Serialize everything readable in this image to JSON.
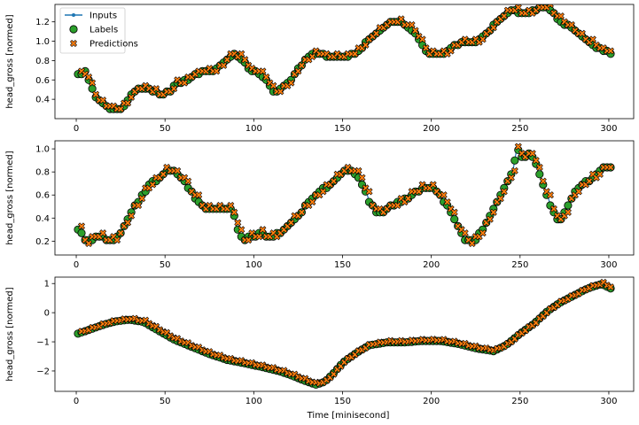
{
  "chart_data": [
    {
      "type": "scatter",
      "xlim": [
        -12,
        314
      ],
      "ylim": [
        0.2,
        1.38
      ],
      "xticks": [
        0,
        50,
        100,
        150,
        200,
        250,
        300
      ],
      "yticks": [
        0.4,
        0.6,
        0.8,
        1.0,
        1.2
      ],
      "ytick_labels": [
        "0.4",
        "0.6",
        "0.8",
        "1.0",
        "1.2"
      ],
      "ylabel": "head_gross [normed]",
      "legend": {
        "position": "upper-left",
        "entries": [
          "Inputs",
          "Labels",
          "Predictions"
        ]
      },
      "curve": [
        [
          2,
          0.65
        ],
        [
          5,
          0.68
        ],
        [
          8,
          0.55
        ],
        [
          10,
          0.45
        ],
        [
          13,
          0.38
        ],
        [
          16,
          0.34
        ],
        [
          20,
          0.3
        ],
        [
          25,
          0.3
        ],
        [
          28,
          0.36
        ],
        [
          32,
          0.46
        ],
        [
          35,
          0.52
        ],
        [
          40,
          0.52
        ],
        [
          43,
          0.48
        ],
        [
          48,
          0.45
        ],
        [
          53,
          0.48
        ],
        [
          56,
          0.58
        ],
        [
          60,
          0.58
        ],
        [
          63,
          0.6
        ],
        [
          66,
          0.65
        ],
        [
          70,
          0.68
        ],
        [
          75,
          0.68
        ],
        [
          80,
          0.72
        ],
        [
          84,
          0.8
        ],
        [
          88,
          0.86
        ],
        [
          92,
          0.84
        ],
        [
          95,
          0.78
        ],
        [
          98,
          0.7
        ],
        [
          102,
          0.68
        ],
        [
          106,
          0.62
        ],
        [
          110,
          0.5
        ],
        [
          113,
          0.48
        ],
        [
          116,
          0.52
        ],
        [
          120,
          0.58
        ],
        [
          124,
          0.7
        ],
        [
          128,
          0.78
        ],
        [
          133,
          0.86
        ],
        [
          138,
          0.86
        ],
        [
          145,
          0.84
        ],
        [
          150,
          0.84
        ],
        [
          155,
          0.86
        ],
        [
          160,
          0.92
        ],
        [
          165,
          1.02
        ],
        [
          170,
          1.1
        ],
        [
          175,
          1.18
        ],
        [
          180,
          1.2
        ],
        [
          185,
          1.18
        ],
        [
          190,
          1.1
        ],
        [
          194,
          1.0
        ],
        [
          198,
          0.88
        ],
        [
          202,
          0.88
        ],
        [
          208,
          0.88
        ],
        [
          212,
          0.94
        ],
        [
          216,
          0.98
        ],
        [
          220,
          0.98
        ],
        [
          225,
          0.98
        ],
        [
          230,
          1.06
        ],
        [
          235,
          1.16
        ],
        [
          240,
          1.26
        ],
        [
          245,
          1.32
        ],
        [
          250,
          1.3
        ],
        [
          255,
          1.28
        ],
        [
          258,
          1.32
        ],
        [
          262,
          1.34
        ],
        [
          266,
          1.34
        ],
        [
          270,
          1.26
        ],
        [
          275,
          1.18
        ],
        [
          280,
          1.12
        ],
        [
          285,
          1.04
        ],
        [
          290,
          0.98
        ],
        [
          295,
          0.92
        ],
        [
          301,
          0.88
        ]
      ],
      "xlabel": "",
      "title": ""
    },
    {
      "type": "scatter",
      "xlim": [
        -12,
        314
      ],
      "ylim": [
        0.08,
        1.07
      ],
      "xticks": [
        0,
        50,
        100,
        150,
        200,
        250,
        300
      ],
      "yticks": [
        0.2,
        0.4,
        0.6,
        0.8,
        1.0
      ],
      "ytick_labels": [
        "0.2",
        "0.4",
        "0.6",
        "0.8",
        "1.0"
      ],
      "ylabel": "head_gross [normed]",
      "curve": [
        [
          2,
          0.3
        ],
        [
          4,
          0.22
        ],
        [
          6,
          0.18
        ],
        [
          10,
          0.24
        ],
        [
          14,
          0.24
        ],
        [
          18,
          0.2
        ],
        [
          22,
          0.22
        ],
        [
          26,
          0.3
        ],
        [
          30,
          0.42
        ],
        [
          34,
          0.52
        ],
        [
          38,
          0.62
        ],
        [
          42,
          0.7
        ],
        [
          46,
          0.74
        ],
        [
          50,
          0.8
        ],
        [
          55,
          0.8
        ],
        [
          60,
          0.74
        ],
        [
          64,
          0.64
        ],
        [
          68,
          0.56
        ],
        [
          72,
          0.48
        ],
        [
          78,
          0.48
        ],
        [
          84,
          0.48
        ],
        [
          88,
          0.46
        ],
        [
          92,
          0.26
        ],
        [
          94,
          0.2
        ],
        [
          98,
          0.24
        ],
        [
          104,
          0.26
        ],
        [
          110,
          0.24
        ],
        [
          116,
          0.28
        ],
        [
          120,
          0.36
        ],
        [
          125,
          0.42
        ],
        [
          130,
          0.52
        ],
        [
          135,
          0.6
        ],
        [
          140,
          0.66
        ],
        [
          145,
          0.72
        ],
        [
          150,
          0.8
        ],
        [
          156,
          0.8
        ],
        [
          160,
          0.74
        ],
        [
          163,
          0.62
        ],
        [
          166,
          0.52
        ],
        [
          170,
          0.44
        ],
        [
          175,
          0.48
        ],
        [
          180,
          0.52
        ],
        [
          185,
          0.56
        ],
        [
          190,
          0.62
        ],
        [
          195,
          0.66
        ],
        [
          200,
          0.66
        ],
        [
          205,
          0.6
        ],
        [
          210,
          0.48
        ],
        [
          214,
          0.34
        ],
        [
          218,
          0.24
        ],
        [
          222,
          0.18
        ],
        [
          226,
          0.24
        ],
        [
          230,
          0.32
        ],
        [
          234,
          0.44
        ],
        [
          238,
          0.56
        ],
        [
          242,
          0.68
        ],
        [
          246,
          0.8
        ],
        [
          248,
          1.0
        ],
        [
          252,
          0.92
        ],
        [
          256,
          0.96
        ],
        [
          260,
          0.82
        ],
        [
          264,
          0.64
        ],
        [
          268,
          0.48
        ],
        [
          272,
          0.36
        ],
        [
          276,
          0.46
        ],
        [
          280,
          0.6
        ],
        [
          284,
          0.66
        ],
        [
          288,
          0.72
        ],
        [
          292,
          0.76
        ],
        [
          296,
          0.82
        ],
        [
          301,
          0.85
        ]
      ],
      "xlabel": "",
      "title": ""
    },
    {
      "type": "scatter",
      "xlim": [
        -12,
        314
      ],
      "ylim": [
        -2.7,
        1.22
      ],
      "xticks": [
        0,
        50,
        100,
        150,
        200,
        250,
        300
      ],
      "yticks": [
        -2,
        -1,
        0,
        1
      ],
      "ytick_labels": [
        "−2",
        "−1",
        "0",
        "1"
      ],
      "ylabel": "head_gross [normed]",
      "xlabel": "Time [minisecond]",
      "curve": [
        [
          1,
          -0.7
        ],
        [
          8,
          -0.55
        ],
        [
          15,
          -0.4
        ],
        [
          22,
          -0.28
        ],
        [
          30,
          -0.22
        ],
        [
          38,
          -0.3
        ],
        [
          45,
          -0.55
        ],
        [
          55,
          -0.9
        ],
        [
          65,
          -1.15
        ],
        [
          75,
          -1.4
        ],
        [
          85,
          -1.6
        ],
        [
          95,
          -1.72
        ],
        [
          105,
          -1.85
        ],
        [
          115,
          -2.0
        ],
        [
          122,
          -2.15
        ],
        [
          128,
          -2.3
        ],
        [
          135,
          -2.45
        ],
        [
          140,
          -2.35
        ],
        [
          145,
          -2.05
        ],
        [
          150,
          -1.7
        ],
        [
          158,
          -1.35
        ],
        [
          165,
          -1.1
        ],
        [
          175,
          -1.0
        ],
        [
          185,
          -1.0
        ],
        [
          195,
          -0.95
        ],
        [
          205,
          -0.95
        ],
        [
          215,
          -1.05
        ],
        [
          225,
          -1.2
        ],
        [
          235,
          -1.3
        ],
        [
          242,
          -1.1
        ],
        [
          250,
          -0.7
        ],
        [
          258,
          -0.35
        ],
        [
          265,
          0.05
        ],
        [
          272,
          0.35
        ],
        [
          280,
          0.6
        ],
        [
          288,
          0.85
        ],
        [
          293,
          0.95
        ],
        [
          296,
          1.0
        ],
        [
          301,
          0.85
        ]
      ],
      "title": ""
    }
  ],
  "colors": {
    "inputs": "#1f77b4",
    "labels": "#2ca02c",
    "predictions": "#ff7f0e"
  }
}
